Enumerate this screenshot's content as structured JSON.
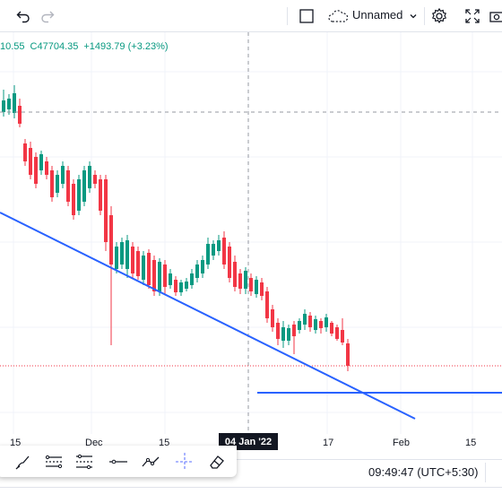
{
  "toolbar": {
    "undo_icon": "undo-icon",
    "redo_icon": "redo-icon",
    "layout_name": "Unnamed",
    "colors": {
      "icon": "#131722",
      "disabled": "#b2b5be"
    }
  },
  "legend": {
    "open_partial": "10.55",
    "close": "C47704.35",
    "change": "+1493.79 (+3.23%)",
    "color": "#089981"
  },
  "chart_data": {
    "type": "candlestick",
    "colors": {
      "up": "#089981",
      "down": "#f23645",
      "trendline": "#2962ff"
    },
    "x_ticks": [
      "15",
      "Dec",
      "15",
      "17",
      "Feb",
      "15"
    ],
    "crosshair_date": "04 Jan '22",
    "drawings": [
      "descending trendline",
      "horizontal ray"
    ]
  },
  "drawing_toolbar": {
    "tools": [
      "brush-icon",
      "parallel-channel-icon",
      "fib-retracement-icon",
      "horizontal-line-icon",
      "path-icon",
      "crosshair-icon",
      "eraser-icon"
    ]
  },
  "status": {
    "time": "09:49:47 (UTC+5:30)"
  }
}
